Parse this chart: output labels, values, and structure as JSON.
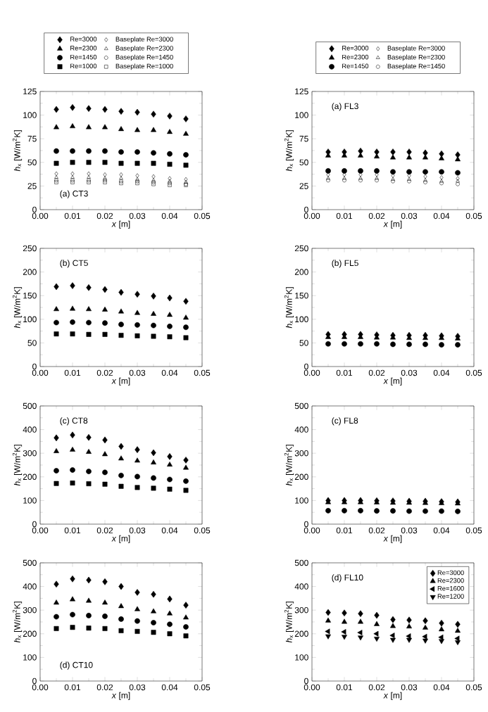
{
  "chart_data": [
    {
      "type": "scatter",
      "x": [
        0.005,
        0.01,
        0.015,
        0.02,
        0.025,
        0.03,
        0.035,
        0.04,
        0.045
      ],
      "xlim": [
        0,
        0.05
      ],
      "ylim": [
        0,
        125
      ],
      "xticks": [
        {
          "value": 0,
          "label": "0.00"
        },
        {
          "value": 0.01,
          "label": "0.01"
        },
        {
          "value": 0.02,
          "label": "0.02"
        },
        {
          "value": 0.03,
          "label": "0.03"
        },
        {
          "value": 0.04,
          "label": "0.04"
        },
        {
          "value": 0.05,
          "label": "0.05"
        }
      ],
      "yticks": [
        0,
        25,
        50,
        75,
        100,
        125
      ],
      "xlabel": "*x* [m]",
      "ylabel": "*h*$_{x}$ [W/m$^{2}$K]",
      "annotations": [
        "(a) CT3"
      ],
      "legend": "top",
      "series": [
        {
          "name": "Re=3000",
          "color": "#000000",
          "marker": "diamond",
          "values": [
            106,
            108,
            107,
            106,
            104,
            103,
            101,
            99,
            96
          ]
        },
        {
          "name": "Re=2300",
          "color": "#000000",
          "marker": "triangle",
          "values": [
            87,
            88,
            87,
            87,
            85,
            84,
            84,
            82,
            80
          ]
        },
        {
          "name": "Re=1450",
          "color": "#000000",
          "marker": "circle",
          "values": [
            62,
            62,
            62,
            62,
            61,
            61,
            60,
            59,
            58
          ]
        },
        {
          "name": "Re=1000",
          "color": "#000000",
          "marker": "square",
          "values": [
            49,
            50,
            50,
            50,
            49,
            49,
            49,
            48,
            47
          ]
        },
        {
          "name": "Baseplate Re=3000",
          "color": "#000000",
          "marker": "diamond-open",
          "values": [
            38,
            38,
            38,
            37,
            37,
            36,
            35,
            33,
            32
          ]
        },
        {
          "name": "Baseplate Re=2300",
          "color": "#000000",
          "marker": "triangle-open",
          "values": [
            34,
            34,
            34,
            33,
            33,
            32,
            31,
            30,
            29
          ]
        },
        {
          "name": "Baseplate Re=1450",
          "color": "#000000",
          "marker": "circle-open",
          "values": [
            31,
            31,
            31,
            31,
            30,
            30,
            29,
            28,
            27
          ]
        },
        {
          "name": "Baseplate Re=1000",
          "color": "#000000",
          "marker": "square-open",
          "values": [
            29,
            29,
            29,
            29,
            28,
            28,
            27,
            26,
            26
          ]
        }
      ]
    },
    {
      "type": "scatter",
      "x": [
        0.005,
        0.01,
        0.015,
        0.02,
        0.025,
        0.03,
        0.035,
        0.04,
        0.045
      ],
      "xlim": [
        0,
        0.05
      ],
      "ylim": [
        0,
        125
      ],
      "xticks": [
        {
          "value": 0,
          "label": "0.00"
        },
        {
          "value": 0.01,
          "label": "0.01"
        },
        {
          "value": 0.02,
          "label": "0.02"
        },
        {
          "value": 0.03,
          "label": "0.03"
        },
        {
          "value": 0.04,
          "label": "0.04"
        },
        {
          "value": 0.05,
          "label": "0.05"
        }
      ],
      "yticks": [
        0,
        25,
        50,
        75,
        100,
        125
      ],
      "xlabel": "*x* [m]",
      "ylabel": "*h*$_{x}$ [W/m$^{2}$K]",
      "annotations": [
        "(a) FL3"
      ],
      "legend": "top",
      "series": [
        {
          "name": "Re=3000",
          "color": "#000000",
          "marker": "diamond",
          "values": [
            61,
            61,
            62,
            61,
            61,
            61,
            60,
            59,
            58
          ]
        },
        {
          "name": "Re=2300",
          "color": "#000000",
          "marker": "triangle",
          "values": [
            57,
            57,
            57,
            56,
            55,
            55,
            55,
            54,
            53
          ]
        },
        {
          "name": "Re=1450",
          "color": "#000000",
          "marker": "circle",
          "values": [
            41,
            41,
            41,
            41,
            40,
            40,
            40,
            40,
            39
          ]
        },
        {
          "name": "Baseplate Re=3000",
          "color": "#000000",
          "marker": "diamond-open",
          "values": [
            37,
            37,
            37,
            37,
            36,
            36,
            35,
            34,
            33
          ]
        },
        {
          "name": "Baseplate Re=2300",
          "color": "#000000",
          "marker": "triangle-open",
          "values": [
            33,
            33,
            33,
            33,
            32,
            32,
            31,
            30,
            30
          ]
        },
        {
          "name": "Baseplate Re=1450",
          "color": "#000000",
          "marker": "circle-open",
          "values": [
            31,
            31,
            31,
            31,
            30,
            30,
            29,
            28,
            27
          ]
        }
      ]
    },
    {
      "type": "scatter",
      "x": [
        0.005,
        0.01,
        0.015,
        0.02,
        0.025,
        0.03,
        0.035,
        0.04,
        0.045
      ],
      "xlim": [
        0,
        0.05
      ],
      "ylim": [
        0,
        250
      ],
      "xticks": [
        {
          "value": 0,
          "label": "0.00"
        },
        {
          "value": 0.01,
          "label": "0.01"
        },
        {
          "value": 0.02,
          "label": "0.02"
        },
        {
          "value": 0.03,
          "label": "0.03"
        },
        {
          "value": 0.04,
          "label": "0.04"
        },
        {
          "value": 0.05,
          "label": "0.05"
        }
      ],
      "yticks": [
        0,
        50,
        100,
        150,
        200,
        250
      ],
      "xlabel": "*x* [m]",
      "ylabel": "*h*$_{x}$ [W/m$^{2}$K]",
      "annotations": [
        "(b) CT5"
      ],
      "series": [
        {
          "color": "#000000",
          "marker": "diamond",
          "values": [
            169,
            171,
            167,
            163,
            157,
            153,
            149,
            145,
            138
          ]
        },
        {
          "color": "#000000",
          "marker": "triangle",
          "values": [
            121,
            122,
            121,
            120,
            116,
            113,
            111,
            109,
            103
          ]
        },
        {
          "color": "#000000",
          "marker": "circle",
          "values": [
            93,
            94,
            93,
            92,
            89,
            88,
            87,
            85,
            83
          ]
        },
        {
          "color": "#000000",
          "marker": "square",
          "values": [
            69,
            69,
            68,
            68,
            66,
            65,
            64,
            63,
            61
          ]
        }
      ]
    },
    {
      "type": "scatter",
      "x": [
        0.005,
        0.01,
        0.015,
        0.02,
        0.025,
        0.03,
        0.035,
        0.04,
        0.045
      ],
      "xlim": [
        0,
        0.05
      ],
      "ylim": [
        0,
        250
      ],
      "xticks": [
        {
          "value": 0,
          "label": "0.00"
        },
        {
          "value": 0.01,
          "label": "0.01"
        },
        {
          "value": 0.02,
          "label": "0.02"
        },
        {
          "value": 0.03,
          "label": "0.03"
        },
        {
          "value": 0.04,
          "label": "0.04"
        },
        {
          "value": 0.05,
          "label": "0.05"
        }
      ],
      "yticks": [
        0,
        50,
        100,
        150,
        200,
        250
      ],
      "xlabel": "*x* [m]",
      "ylabel": "*h*$_{x}$ [W/m$^{2}$K]",
      "annotations": [
        "(b) FL5"
      ],
      "series": [
        {
          "color": "#000000",
          "marker": "diamond",
          "values": [
            68,
            68,
            68,
            67,
            66,
            66,
            66,
            65,
            64
          ]
        },
        {
          "color": "#000000",
          "marker": "triangle",
          "values": [
            62,
            62,
            62,
            61,
            61,
            60,
            60,
            60,
            59
          ]
        },
        {
          "color": "#000000",
          "marker": "circle",
          "values": [
            48,
            48,
            48,
            48,
            47,
            47,
            47,
            46,
            46
          ]
        }
      ]
    },
    {
      "type": "scatter",
      "x": [
        0.005,
        0.01,
        0.015,
        0.02,
        0.025,
        0.03,
        0.035,
        0.04,
        0.045
      ],
      "xlim": [
        0,
        0.05
      ],
      "ylim": [
        0,
        500
      ],
      "xticks": [
        {
          "value": 0,
          "label": "0.00"
        },
        {
          "value": 0.01,
          "label": "0.01"
        },
        {
          "value": 0.02,
          "label": "0.02"
        },
        {
          "value": 0.03,
          "label": "0.03"
        },
        {
          "value": 0.04,
          "label": "0.04"
        },
        {
          "value": 0.05,
          "label": "0.05"
        }
      ],
      "yticks": [
        0,
        100,
        200,
        300,
        400,
        500
      ],
      "xlabel": "*x* [m]",
      "ylabel": "*h*$_{x}$ [W/m$^{2}$K]",
      "annotations": [
        "(c) CT8"
      ],
      "series": [
        {
          "color": "#000000",
          "marker": "diamond",
          "values": [
            365,
            377,
            367,
            356,
            329,
            315,
            302,
            286,
            271
          ]
        },
        {
          "color": "#000000",
          "marker": "triangle",
          "values": [
            308,
            314,
            305,
            295,
            277,
            268,
            260,
            251,
            238
          ]
        },
        {
          "color": "#000000",
          "marker": "circle",
          "values": [
            226,
            229,
            223,
            219,
            206,
            201,
            195,
            189,
            182
          ]
        },
        {
          "color": "#000000",
          "marker": "square",
          "values": [
            172,
            174,
            171,
            169,
            160,
            155,
            152,
            148,
            143
          ]
        }
      ]
    },
    {
      "type": "scatter",
      "x": [
        0.005,
        0.01,
        0.015,
        0.02,
        0.025,
        0.03,
        0.035,
        0.04,
        0.045
      ],
      "xlim": [
        0,
        0.05
      ],
      "ylim": [
        0,
        500
      ],
      "xticks": [
        {
          "value": 0,
          "label": "0.00"
        },
        {
          "value": 0.01,
          "label": "0.01"
        },
        {
          "value": 0.02,
          "label": "0.02"
        },
        {
          "value": 0.03,
          "label": "0.03"
        },
        {
          "value": 0.04,
          "label": "0.04"
        },
        {
          "value": 0.05,
          "label": "0.05"
        }
      ],
      "yticks": [
        0,
        100,
        200,
        300,
        400,
        500
      ],
      "xlabel": "*x* [m]",
      "ylabel": "*h*$_{x}$ [W/m$^{2}$K]",
      "annotations": [
        "(c) FL8"
      ],
      "series": [
        {
          "color": "#000000",
          "marker": "diamond",
          "values": [
            100,
            100,
            100,
            99,
            98,
            97,
            97,
            95,
            94
          ]
        },
        {
          "color": "#000000",
          "marker": "triangle",
          "values": [
            92,
            92,
            92,
            91,
            90,
            90,
            89,
            88,
            87
          ]
        },
        {
          "color": "#000000",
          "marker": "circle",
          "values": [
            57,
            57,
            57,
            56,
            56,
            55,
            55,
            55,
            54
          ]
        }
      ]
    },
    {
      "type": "scatter",
      "x": [
        0.005,
        0.01,
        0.015,
        0.02,
        0.025,
        0.03,
        0.035,
        0.04,
        0.045
      ],
      "xlim": [
        0,
        0.05
      ],
      "ylim": [
        0,
        500
      ],
      "xticks": [
        {
          "value": 0,
          "label": "0.00"
        },
        {
          "value": 0.01,
          "label": "0.01"
        },
        {
          "value": 0.02,
          "label": "0.02"
        },
        {
          "value": 0.03,
          "label": "0.03"
        },
        {
          "value": 0.04,
          "label": "0.04"
        },
        {
          "value": 0.05,
          "label": "0.05"
        }
      ],
      "yticks": [
        0,
        100,
        200,
        300,
        400,
        500
      ],
      "xlabel": "*x* [m]",
      "ylabel": "*h*$_{x}$ [W/m$^{2}$K]",
      "annotations": [
        "(d) CT10"
      ],
      "series": [
        {
          "color": "#000000",
          "marker": "diamond",
          "values": [
            410,
            432,
            427,
            420,
            400,
            375,
            367,
            347,
            321
          ]
        },
        {
          "color": "#000000",
          "marker": "triangle",
          "values": [
            331,
            345,
            339,
            331,
            316,
            303,
            294,
            285,
            268
          ]
        },
        {
          "color": "#000000",
          "marker": "circle",
          "values": [
            272,
            281,
            277,
            274,
            262,
            254,
            247,
            240,
            229
          ]
        },
        {
          "color": "#000000",
          "marker": "square",
          "values": [
            222,
            227,
            224,
            222,
            213,
            210,
            206,
            200,
            191
          ]
        }
      ]
    },
    {
      "type": "scatter",
      "x": [
        0.005,
        0.01,
        0.015,
        0.02,
        0.025,
        0.03,
        0.035,
        0.04,
        0.045
      ],
      "xlim": [
        0,
        0.05
      ],
      "ylim": [
        0,
        500
      ],
      "xticks": [
        {
          "value": 0,
          "label": "0.00"
        },
        {
          "value": 0.01,
          "label": "0.01"
        },
        {
          "value": 0.02,
          "label": "0.02"
        },
        {
          "value": 0.03,
          "label": "0.03"
        },
        {
          "value": 0.04,
          "label": "0.04"
        },
        {
          "value": 0.05,
          "label": "0.05"
        }
      ],
      "yticks": [
        0,
        100,
        200,
        300,
        400,
        500
      ],
      "xlabel": "*x* [m]",
      "ylabel": "*h*$_{x}$ [W/m$^{2}$K]",
      "annotations": [
        "(d) FL10"
      ],
      "legend": "top right",
      "series": [
        {
          "name": "Re=3000",
          "color": "#000000",
          "marker": "diamond",
          "values": [
            290,
            288,
            285,
            278,
            260,
            258,
            255,
            245,
            240
          ]
        },
        {
          "name": "Re=2300",
          "color": "#000000",
          "marker": "triangle",
          "values": [
            255,
            250,
            250,
            240,
            232,
            230,
            225,
            218,
            212
          ]
        },
        {
          "name": "Re=1600",
          "color": "#000000",
          "marker": "triangle-left",
          "values": [
            210,
            208,
            205,
            200,
            193,
            190,
            188,
            185,
            180
          ]
        },
        {
          "name": "Re=1200",
          "color": "#000000",
          "marker": "triangle-down",
          "values": [
            190,
            188,
            185,
            180,
            175,
            175,
            172,
            170,
            165
          ]
        }
      ]
    }
  ]
}
